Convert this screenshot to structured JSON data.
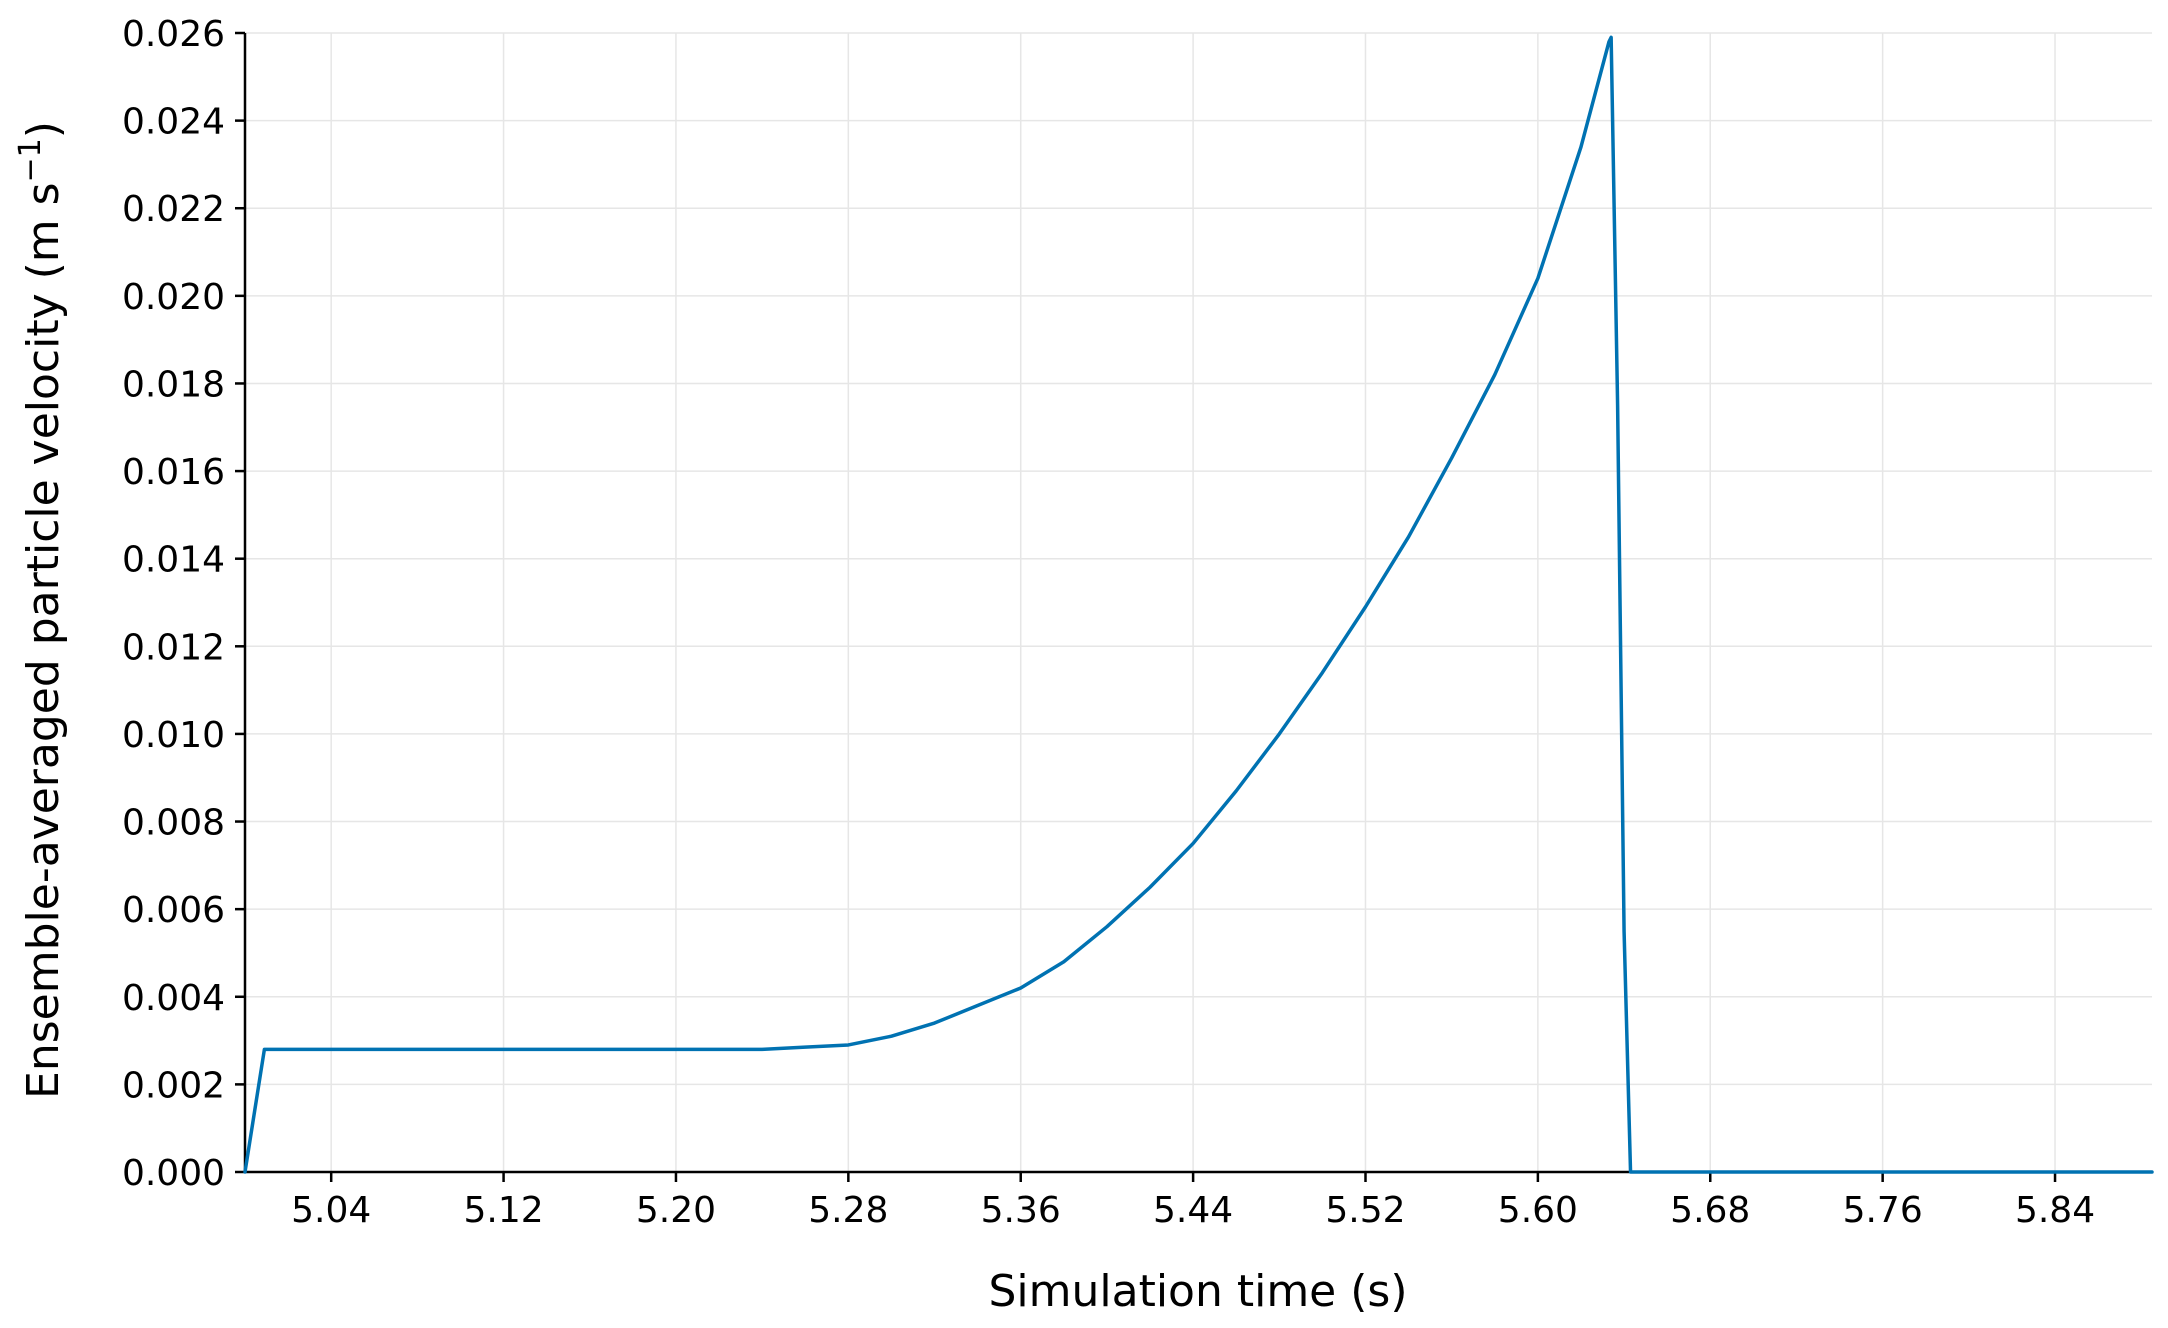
{
  "chart_data": {
    "type": "line",
    "title": "",
    "xlabel": "Simulation time (s)",
    "ylabel": {
      "text": "Ensemble-averaged particle velocity (m s",
      "superscript": "−1",
      "suffix": ")"
    },
    "xlim": [
      5.0,
      5.885
    ],
    "ylim": [
      0.0,
      0.026
    ],
    "xticks": [
      5.04,
      5.12,
      5.2,
      5.28,
      5.36,
      5.44,
      5.52,
      5.6,
      5.68,
      5.76,
      5.84
    ],
    "xtick_labels": [
      "5.04",
      "5.12",
      "5.20",
      "5.28",
      "5.36",
      "5.44",
      "5.52",
      "5.60",
      "5.68",
      "5.76",
      "5.84"
    ],
    "yticks": [
      0.0,
      0.002,
      0.004,
      0.006,
      0.008,
      0.01,
      0.012,
      0.014,
      0.016,
      0.018,
      0.02,
      0.022,
      0.024,
      0.026
    ],
    "ytick_labels": [
      "0.000",
      "0.002",
      "0.004",
      "0.006",
      "0.008",
      "0.010",
      "0.012",
      "0.014",
      "0.016",
      "0.018",
      "0.020",
      "0.022",
      "0.024",
      "0.026"
    ],
    "grid": true,
    "legend": "none",
    "series": [
      {
        "color": "#0072b2",
        "x": [
          5.0,
          5.009,
          5.02,
          5.05,
          5.1,
          5.15,
          5.2,
          5.24,
          5.26,
          5.28,
          5.3,
          5.32,
          5.34,
          5.36,
          5.38,
          5.4,
          5.42,
          5.44,
          5.46,
          5.48,
          5.5,
          5.52,
          5.54,
          5.56,
          5.58,
          5.6,
          5.62,
          5.633,
          5.634,
          5.637,
          5.64,
          5.643,
          5.66,
          5.7,
          5.75,
          5.8,
          5.85,
          5.885
        ],
        "y": [
          0.0,
          0.0028,
          0.0028,
          0.0028,
          0.0028,
          0.0028,
          0.0028,
          0.0028,
          0.00285,
          0.0029,
          0.0031,
          0.0034,
          0.0038,
          0.0042,
          0.0048,
          0.0056,
          0.0065,
          0.0075,
          0.0087,
          0.01,
          0.0114,
          0.0129,
          0.0145,
          0.0163,
          0.0182,
          0.0204,
          0.0234,
          0.0258,
          0.0259,
          0.0175,
          0.0055,
          0.0,
          0.0,
          0.0,
          0.0,
          0.0,
          0.0,
          0.0
        ]
      }
    ]
  }
}
